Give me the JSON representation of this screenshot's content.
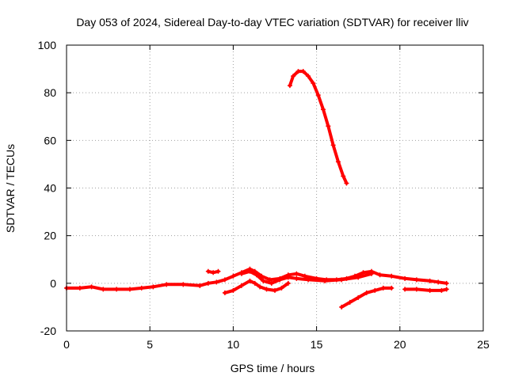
{
  "chart_data": {
    "type": "scatter",
    "title": "Day 053 of 2024, Sidereal Day-to-day VTEC variation (SDTVAR) for receiver lliv",
    "xlabel": "GPS time / hours",
    "ylabel": "SDTVAR / TECUs",
    "xlim": [
      0,
      25
    ],
    "ylim": [
      -20,
      100
    ],
    "xticks": [
      0,
      5,
      10,
      15,
      20,
      25
    ],
    "yticks": [
      -20,
      0,
      20,
      40,
      60,
      80,
      100
    ],
    "grid": true,
    "series_color": "#ff0000",
    "series": [
      {
        "name": "low-band trace",
        "points": [
          [
            0,
            -2
          ],
          [
            0.8,
            -2
          ],
          [
            1.5,
            -1.5
          ],
          [
            2.2,
            -2.5
          ],
          [
            3,
            -2.5
          ],
          [
            3.8,
            -2.5
          ],
          [
            4.5,
            -2
          ],
          [
            5.2,
            -1.5
          ],
          [
            6,
            -0.5
          ],
          [
            7,
            -0.5
          ],
          [
            8,
            -1
          ],
          [
            8.5,
            0
          ],
          [
            9,
            0.5
          ],
          [
            9.5,
            1.5
          ],
          [
            10,
            3
          ],
          [
            10.5,
            4.5
          ],
          [
            11,
            6
          ],
          [
            11.3,
            5
          ],
          [
            11.7,
            3
          ],
          [
            12.2,
            1.5
          ],
          [
            12.8,
            2
          ],
          [
            13.3,
            3.5
          ],
          [
            13.8,
            4
          ],
          [
            14.3,
            3
          ],
          [
            15,
            2
          ],
          [
            15.6,
            1.5
          ],
          [
            16.2,
            1.5
          ],
          [
            16.8,
            2
          ],
          [
            17.3,
            3
          ],
          [
            17.8,
            4.5
          ],
          [
            18.3,
            5
          ],
          [
            18.8,
            3.5
          ],
          [
            19.5,
            3
          ],
          [
            20.3,
            2
          ],
          [
            21,
            1.5
          ],
          [
            21.8,
            1
          ],
          [
            22.3,
            0.5
          ],
          [
            22.8,
            0
          ]
        ]
      },
      {
        "name": "dip trace",
        "points": [
          [
            9.5,
            -4
          ],
          [
            10,
            -3
          ],
          [
            10.5,
            -1
          ],
          [
            11,
            1
          ],
          [
            11.3,
            0
          ],
          [
            11.6,
            -1.5
          ],
          [
            12,
            -2.5
          ],
          [
            12.5,
            -3
          ],
          [
            12.9,
            -2
          ],
          [
            13.3,
            0
          ]
        ]
      },
      {
        "name": "secondary trace",
        "points": [
          [
            10.5,
            4
          ],
          [
            11,
            5
          ],
          [
            11.4,
            3.5
          ],
          [
            11.8,
            1
          ],
          [
            12.3,
            0
          ],
          [
            12.8,
            1.5
          ],
          [
            13.3,
            2.5
          ],
          [
            13.8,
            2
          ],
          [
            14.5,
            1.5
          ],
          [
            15.5,
            1
          ],
          [
            16.5,
            1.5
          ],
          [
            17.5,
            2.5
          ],
          [
            18.3,
            4
          ]
        ]
      },
      {
        "name": "negative trace",
        "points": [
          [
            16.5,
            -10
          ],
          [
            17,
            -8
          ],
          [
            17.5,
            -6
          ],
          [
            18,
            -4
          ],
          [
            18.5,
            -3
          ],
          [
            19,
            -2
          ],
          [
            19.5,
            -2
          ]
        ]
      },
      {
        "name": "lower tail",
        "points": [
          [
            20.3,
            -2.5
          ],
          [
            21,
            -2.5
          ],
          [
            21.8,
            -3
          ],
          [
            22.5,
            -3
          ],
          [
            22.8,
            -2.5
          ]
        ]
      },
      {
        "name": "short segment",
        "points": [
          [
            8.5,
            5
          ],
          [
            8.8,
            4.5
          ],
          [
            9.1,
            5
          ]
        ]
      },
      {
        "name": "high arc",
        "points": [
          [
            13.4,
            83
          ],
          [
            13.6,
            87
          ],
          [
            13.9,
            89
          ],
          [
            14.2,
            89
          ],
          [
            14.5,
            87
          ],
          [
            14.8,
            84
          ],
          [
            15.1,
            79
          ],
          [
            15.4,
            73
          ],
          [
            15.7,
            66
          ],
          [
            16,
            58
          ],
          [
            16.3,
            51
          ],
          [
            16.6,
            45
          ],
          [
            16.8,
            42
          ]
        ]
      }
    ]
  }
}
